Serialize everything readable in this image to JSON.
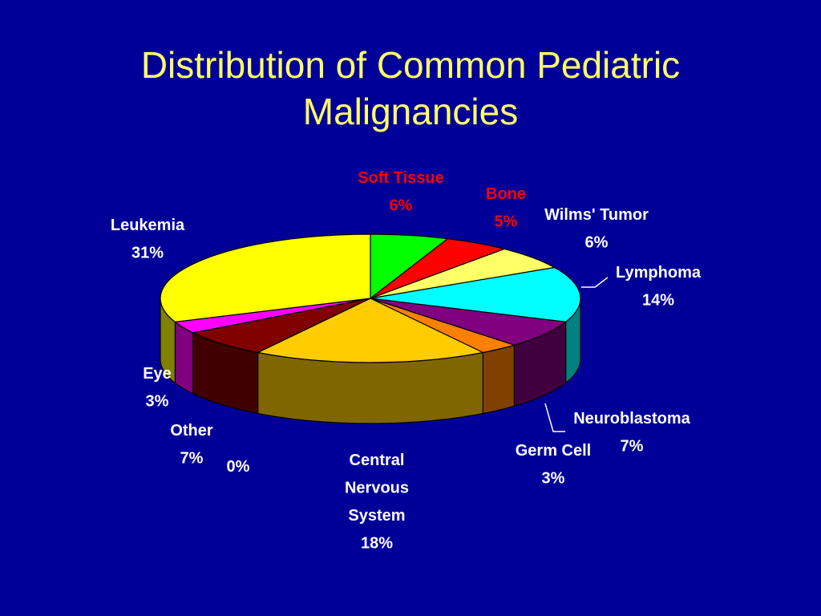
{
  "title_lines": [
    "Distribution of Common Pediatric",
    "Malignancies"
  ],
  "chart_data": {
    "type": "pie",
    "variant": "3d",
    "title": "Distribution of Common Pediatric Malignancies",
    "slices": [
      {
        "label": "Soft Tissue",
        "value_label": "6%",
        "value": 6,
        "color": "#00ff00",
        "label_color": "#ff0000"
      },
      {
        "label": "Bone",
        "value_label": "5%",
        "value": 5,
        "color": "#ff0000",
        "label_color": "#ff0000"
      },
      {
        "label": "Wilms' Tumor",
        "value_label": "6%",
        "value": 6,
        "color": "#ffff66",
        "label_color": "#ffffff"
      },
      {
        "label": "Lymphoma",
        "value_label": "14%",
        "value": 14,
        "color": "#00ffff",
        "label_color": "#ffffff"
      },
      {
        "label": "Neuroblastoma",
        "value_label": "7%",
        "value": 7,
        "color": "#800080",
        "label_color": "#ffffff"
      },
      {
        "label": "Germ Cell",
        "value_label": "3%",
        "value": 3,
        "color": "#ff8000",
        "label_color": "#ffffff"
      },
      {
        "label": "Central\nNervous\nSystem",
        "value_label": "18%",
        "value": 18,
        "color": "#ffcc00",
        "label_color": "#ffffff"
      },
      {
        "label": "",
        "value_label": "0%",
        "value": 0,
        "color": "#ffcc00",
        "label_color": "#ffffff"
      },
      {
        "label": "Other",
        "value_label": "7%",
        "value": 7,
        "color": "#800000",
        "label_color": "#ffffff"
      },
      {
        "label": "Eye",
        "value_label": "3%",
        "value": 3,
        "color": "#ff00ff",
        "label_color": "#ffffff"
      },
      {
        "label": "Leukemia",
        "value_label": "31%",
        "value": 31,
        "color": "#ffff00",
        "label_color": "#ffffff"
      }
    ]
  }
}
